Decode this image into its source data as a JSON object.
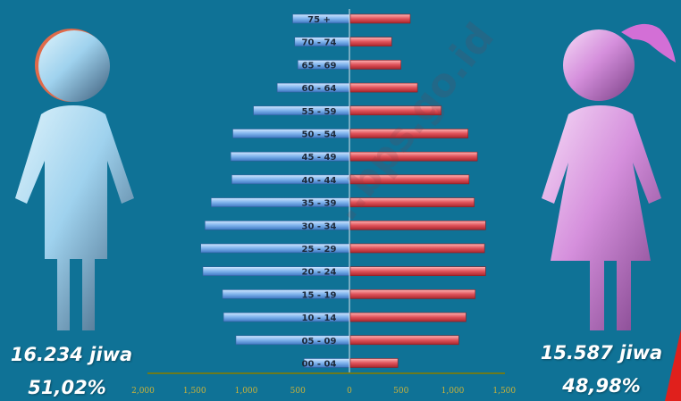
{
  "stats": {
    "male_total": "16.234 jiwa",
    "male_pct": "51,02%",
    "female_total": "15.587 jiwa",
    "female_pct": "48,98%"
  },
  "watermark": "..bps.go.id",
  "colors": {
    "background": "#0f7296",
    "male_bar": "#7fb3ec",
    "female_bar": "#e0535b",
    "axis_line": "#6b7a1e",
    "male_figure": "#a8d8f0",
    "female_figure": "#d89ae0"
  },
  "chart_data": {
    "type": "bar",
    "orientation": "horizontal",
    "categories": [
      "75 +",
      "70 - 74",
      "65 - 69",
      "60 - 64",
      "55 - 59",
      "50 - 54",
      "45 - 49",
      "40 - 44",
      "35 - 39",
      "30 - 34",
      "25 - 29",
      "20 - 24",
      "15 - 19",
      "10 - 14",
      "05 - 09",
      "00 - 04"
    ],
    "series": [
      {
        "side": "left",
        "values": [
          550,
          530,
          500,
          700,
          930,
          1130,
          1150,
          1140,
          1340,
          1400,
          1440,
          1420,
          1230,
          1220,
          1100,
          440
        ]
      },
      {
        "side": "right",
        "values": [
          580,
          400,
          490,
          650,
          880,
          1140,
          1230,
          1150,
          1200,
          1310,
          1300,
          1310,
          1210,
          1120,
          1050,
          460
        ]
      }
    ],
    "xticks": [
      "2,000",
      "1,500",
      "1,000",
      "500",
      "0",
      "500",
      "1,000",
      "1,500"
    ],
    "xlim": [
      -2000,
      1500
    ],
    "grid": false
  }
}
